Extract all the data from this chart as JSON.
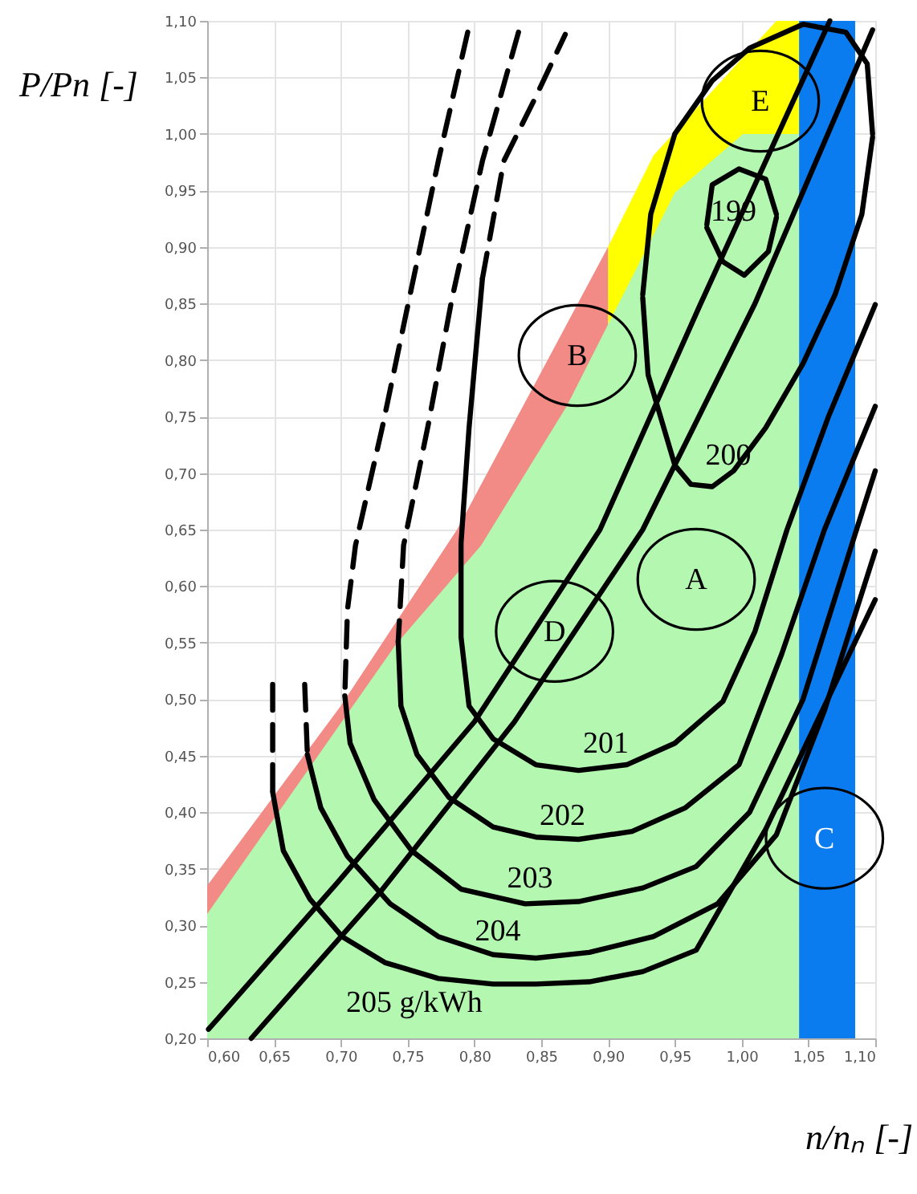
{
  "chart_data": {
    "type": "line",
    "xlabel": "n/nₙ [-]",
    "ylabel": "P/Pn [-]",
    "xlim": [
      0.6,
      1.1
    ],
    "ylim": [
      0.2,
      1.1
    ],
    "xticks": [
      {
        "value": 0.6,
        "label": "0,60"
      },
      {
        "value": 0.65,
        "label": "0,65"
      },
      {
        "value": 0.7,
        "label": "0,70"
      },
      {
        "value": 0.75,
        "label": "0,75"
      },
      {
        "value": 0.8,
        "label": "0,80"
      },
      {
        "value": 0.85,
        "label": "0,85"
      },
      {
        "value": 0.9,
        "label": "0,90"
      },
      {
        "value": 0.95,
        "label": "0,95"
      },
      {
        "value": 1.0,
        "label": "1,00"
      },
      {
        "value": 1.05,
        "label": "1,05"
      },
      {
        "value": 1.1,
        "label": "1,10"
      }
    ],
    "yticks": [
      {
        "value": 0.2,
        "label": "0,20"
      },
      {
        "value": 0.25,
        "label": "0,25"
      },
      {
        "value": 0.3,
        "label": "0,30"
      },
      {
        "value": 0.35,
        "label": "0,35"
      },
      {
        "value": 0.4,
        "label": "0,40"
      },
      {
        "value": 0.45,
        "label": "0,45"
      },
      {
        "value": 0.5,
        "label": "0,50"
      },
      {
        "value": 0.55,
        "label": "0,55"
      },
      {
        "value": 0.6,
        "label": "0,60"
      },
      {
        "value": 0.65,
        "label": "0,65"
      },
      {
        "value": 0.7,
        "label": "0,70"
      },
      {
        "value": 0.75,
        "label": "0,75"
      },
      {
        "value": 0.8,
        "label": "0,80"
      },
      {
        "value": 0.85,
        "label": "0,85"
      },
      {
        "value": 0.9,
        "label": "0,90"
      },
      {
        "value": 0.95,
        "label": "0,95"
      },
      {
        "value": 1.0,
        "label": "1,00"
      },
      {
        "value": 1.05,
        "label": "1,05"
      },
      {
        "value": 1.1,
        "label": "1,10"
      }
    ],
    "grid": true,
    "series": [
      {
        "type": "area",
        "color": "#ffff00",
        "x": [
          0.9,
          0.934,
          1.026,
          1.043
        ],
        "values": [
          0.9,
          0.981,
          1.1,
          1.1
        ]
      },
      {
        "type": "area",
        "color": "#f28b86",
        "x": [
          0.6,
          0.7,
          0.787,
          0.9
        ],
        "values": [
          0.335,
          0.494,
          0.65,
          0.9
        ]
      },
      {
        "type": "area",
        "color": "#b3f7b0",
        "x": [
          0.6,
          0.741,
          0.805,
          0.869,
          0.95,
          1.001,
          1.043
        ],
        "values": [
          0.31,
          0.548,
          0.636,
          0.759,
          0.948,
          1.0,
          1.0
        ]
      },
      {
        "type": "area",
        "color": "#0a7cf0",
        "x": [
          1.043,
          1.085
        ],
        "values": [
          1.1,
          1.1
        ]
      },
      {
        "color": "#000000",
        "line_style": "dashed",
        "x": [
          0.806,
          0.822,
          0.846,
          0.868
        ],
        "values": [
          0.872,
          0.976,
          1.033,
          1.088
        ]
      },
      {
        "color": "#000000",
        "x": [
          0.806,
          0.796,
          0.79,
          0.79,
          0.796,
          0.814,
          0.846,
          0.878,
          0.914,
          0.95,
          0.986,
          1.01,
          1.034,
          1.065,
          1.1
        ],
        "values": [
          0.872,
          0.74,
          0.638,
          0.555,
          0.494,
          0.465,
          0.442,
          0.437,
          0.442,
          0.461,
          0.498,
          0.56,
          0.65,
          0.75,
          0.849
        ]
      },
      {
        "color": "#000000",
        "line_style": "dashed",
        "x": [
          0.833,
          0.806,
          0.783,
          0.765,
          0.747,
          0.743
        ],
        "values": [
          1.09,
          0.976,
          0.853,
          0.74,
          0.636,
          0.551
        ]
      },
      {
        "color": "#000000",
        "x": [
          0.743,
          0.745,
          0.757,
          0.781,
          0.814,
          0.846,
          0.878,
          0.918,
          0.958,
          0.998,
          1.03,
          1.062,
          1.1
        ],
        "values": [
          0.551,
          0.494,
          0.451,
          0.413,
          0.387,
          0.378,
          0.376,
          0.383,
          0.404,
          0.442,
          0.54,
          0.65,
          0.759
        ]
      },
      {
        "color": "#000000",
        "line_style": "dashed",
        "x": [
          0.795,
          0.773,
          0.751,
          0.731,
          0.711,
          0.705,
          0.703
        ],
        "values": [
          1.09,
          0.976,
          0.853,
          0.74,
          0.636,
          0.579,
          0.503
        ]
      },
      {
        "color": "#000000",
        "x": [
          0.703,
          0.707,
          0.725,
          0.753,
          0.79,
          0.838,
          0.878,
          0.926,
          0.966,
          1.006,
          1.046,
          1.086,
          1.1
        ],
        "values": [
          0.503,
          0.461,
          0.411,
          0.366,
          0.332,
          0.319,
          0.321,
          0.333,
          0.352,
          0.4,
          0.5,
          0.65,
          0.702
        ]
      },
      {
        "color": "#000000",
        "line_style": "dashed",
        "x": [
          0.673,
          0.675
        ],
        "values": [
          0.513,
          0.451
        ]
      },
      {
        "color": "#000000",
        "x": [
          0.675,
          0.685,
          0.705,
          0.737,
          0.773,
          0.814,
          0.846,
          0.886,
          0.934,
          0.982,
          1.026,
          1.062,
          1.1
        ],
        "values": [
          0.451,
          0.404,
          0.361,
          0.319,
          0.29,
          0.274,
          0.271,
          0.276,
          0.29,
          0.319,
          0.38,
          0.49,
          0.631
        ]
      },
      {
        "color": "#000000",
        "line_style": "dashed",
        "x": [
          0.649,
          0.649
        ],
        "values": [
          0.513,
          0.418
        ]
      },
      {
        "color": "#000000",
        "x": [
          0.649,
          0.657,
          0.677,
          0.701,
          0.733,
          0.773,
          0.814,
          0.846,
          0.886,
          0.926,
          0.966,
          1.018,
          1.1
        ],
        "values": [
          0.418,
          0.366,
          0.323,
          0.29,
          0.267,
          0.253,
          0.248,
          0.248,
          0.25,
          0.259,
          0.278,
          0.385,
          0.588
        ]
      },
      {
        "color": "#000000",
        "x": [
          0.601,
          0.697,
          0.8,
          0.894,
          0.969,
          1.066
        ],
        "values": [
          0.208,
          0.337,
          0.48,
          0.65,
          0.849,
          1.1
        ]
      },
      {
        "color": "#000000",
        "x": [
          0.633,
          0.73,
          0.83,
          0.926,
          1.01,
          1.098
        ],
        "values": [
          0.2,
          0.33,
          0.48,
          0.65,
          0.85,
          1.092
        ]
      },
      {
        "color": "#000000",
        "x": [
          0.926,
          0.932,
          0.95,
          0.978,
          1.006,
          1.046,
          1.078,
          1.094,
          1.098
        ],
        "values": [
          0.858,
          0.929,
          1.0,
          1.047,
          1.076,
          1.097,
          1.09,
          1.062,
          1.0
        ]
      },
      {
        "color": "#000000",
        "x": [
          0.926,
          0.93,
          0.95,
          0.962,
          0.978,
          0.994,
          1.018,
          1.046,
          1.07,
          1.09,
          1.098
        ],
        "values": [
          0.855,
          0.787,
          0.707,
          0.69,
          0.688,
          0.702,
          0.74,
          0.797,
          0.858,
          0.929,
          0.997
        ]
      },
      {
        "color": "#000000",
        "x": [
          0.974,
          0.978,
          0.998,
          1.018,
          1.026
        ],
        "values": [
          0.92,
          0.955,
          0.969,
          0.96,
          0.929
        ]
      },
      {
        "color": "#000000",
        "x": [
          0.974,
          0.986,
          1.002,
          1.02,
          1.026
        ],
        "values": [
          0.917,
          0.887,
          0.875,
          0.896,
          0.926
        ]
      }
    ],
    "annotations": [
      "E",
      "B",
      "A",
      "D",
      "C",
      "199",
      "200",
      {
        "text": "201",
        "x": 0.878,
        "y": 0.437
      },
      {
        "text": "202",
        "x": 0.878,
        "y": 0.376
      },
      {
        "text": "203",
        "x": 0.838,
        "y": 0.319
      },
      {
        "text": "204",
        "x": 0.814,
        "y": 0.274
      },
      {
        "text": "205 g/kWh",
        "x": 0.773,
        "y": 0.253
      }
    ]
  }
}
